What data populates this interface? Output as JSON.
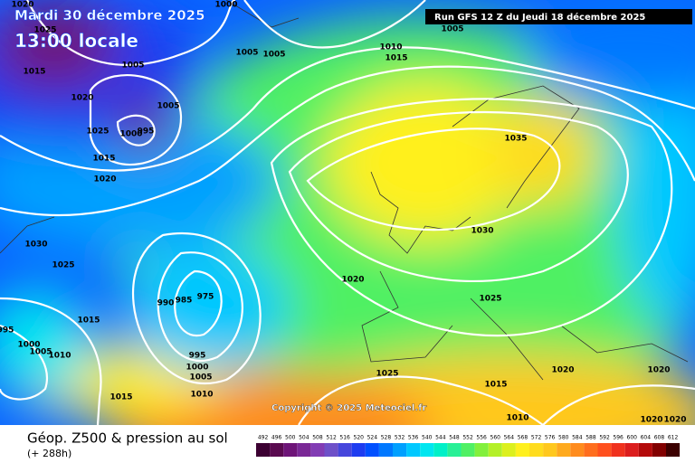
{
  "header": {
    "date": "Mardi 30 décembre 2025",
    "time": "13:00 locale",
    "run": "Run GFS 12 Z du Jeudi 18 décembre 2025"
  },
  "copyright": "Copyright © 2025 Meteociel.fr",
  "footer": {
    "title": "Géop. Z500 & pression au sol",
    "lead": "(+ 288h)"
  },
  "isobar_labels": [
    "1000",
    "1005",
    "1020",
    "1025",
    "1015",
    "1005",
    "1005",
    "1005",
    "1010",
    "1015",
    "1020",
    "1005",
    "1025",
    "1000",
    "995",
    "1015",
    "1020",
    "1035",
    "1030",
    "1030",
    "1025",
    "1020",
    "1025",
    "990",
    "985",
    "975",
    "1015",
    "995",
    "1000",
    "1005",
    "1010",
    "995",
    "1000",
    "1005",
    "1010",
    "1015",
    "1025",
    "1015",
    "1020",
    "1020",
    "1010",
    "1020",
    "1020"
  ],
  "scale": {
    "values": [
      492,
      496,
      500,
      504,
      508,
      512,
      516,
      520,
      524,
      528,
      532,
      536,
      540,
      544,
      548,
      552,
      556,
      560,
      564,
      568,
      572,
      576,
      580,
      584,
      588,
      592,
      596,
      600,
      604,
      608,
      612
    ],
    "colors": [
      "#3c0032",
      "#5a0a50",
      "#6e1478",
      "#7a2896",
      "#823cb4",
      "#6e50c8",
      "#4646dc",
      "#1e3cf0",
      "#0050ff",
      "#0078ff",
      "#00a0ff",
      "#00c8ff",
      "#00e6f0",
      "#00f0c8",
      "#28f096",
      "#50f064",
      "#82f03c",
      "#b4f028",
      "#dcf01e",
      "#fff01e",
      "#ffdc1e",
      "#ffc81e",
      "#ffaa1e",
      "#ff8c1e",
      "#ff6e1e",
      "#ff501e",
      "#f0321e",
      "#dc1e1e",
      "#b40a0a",
      "#820000",
      "#3c0000"
    ]
  }
}
